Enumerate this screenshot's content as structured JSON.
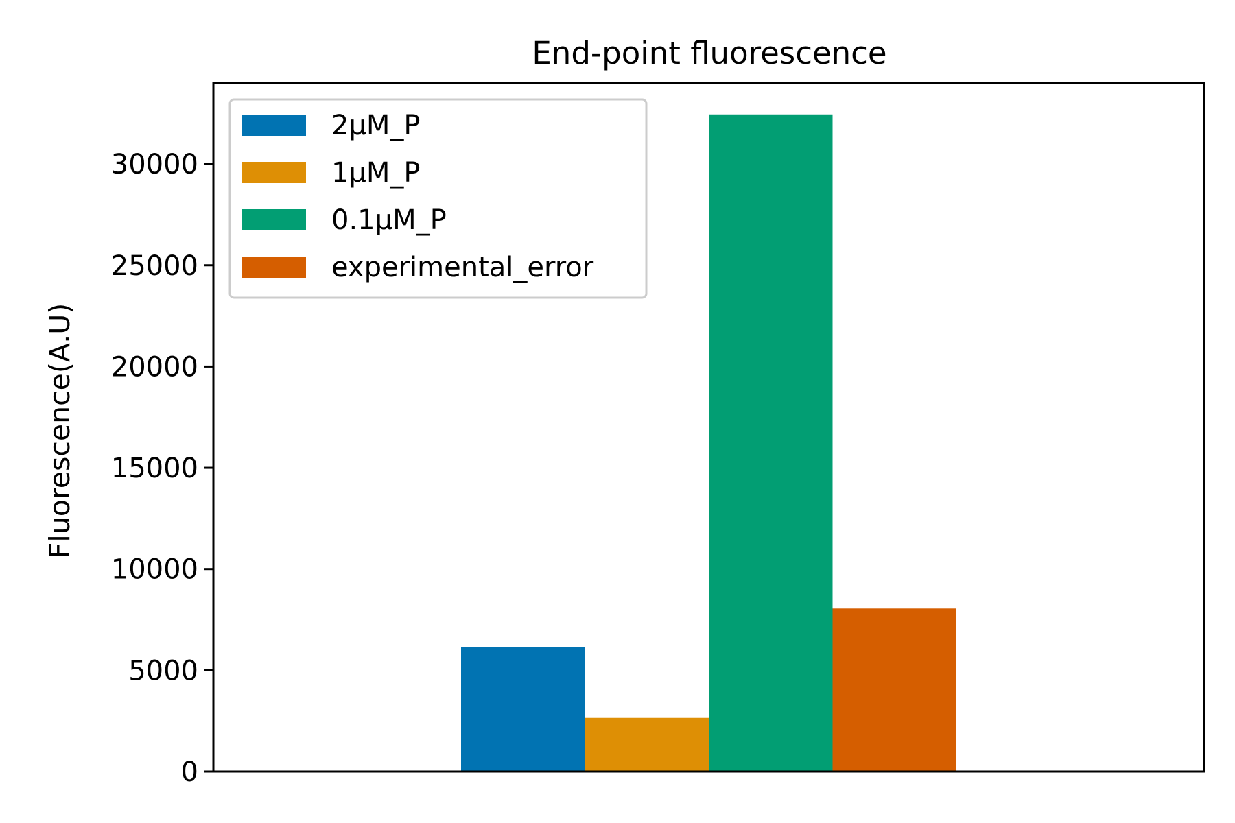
{
  "chart_data": {
    "type": "bar",
    "title": "End-point fluorescence",
    "xlabel": "",
    "ylabel": "Fluorescence(A.U)",
    "ylim": [
      0,
      34000
    ],
    "yticks": [
      0,
      5000,
      10000,
      15000,
      20000,
      25000,
      30000
    ],
    "ytick_labels": [
      "0",
      "5000",
      "10000",
      "15000",
      "20000",
      "25000",
      "30000"
    ],
    "grid": false,
    "legend_position": "top-left",
    "series": [
      {
        "name": "2μM_P",
        "value": 6150,
        "color": "#0173b2"
      },
      {
        "name": "1μM_P",
        "value": 2650,
        "color": "#de8f05"
      },
      {
        "name": "0.1μM_P",
        "value": 32450,
        "color": "#029e73"
      },
      {
        "name": "experimental_error",
        "value": 8050,
        "color": "#d55e00"
      }
    ]
  }
}
